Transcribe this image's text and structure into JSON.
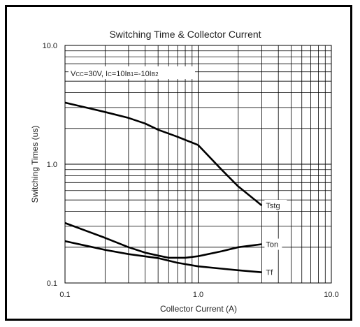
{
  "chart_data": {
    "type": "line",
    "title": "Switching Time & Collector Current",
    "xlabel": "Collector Current (A)",
    "ylabel": "Switching Times (us)",
    "xscale": "log",
    "yscale": "log",
    "xlim": [
      0.1,
      10.0
    ],
    "ylim": [
      0.1,
      10.0
    ],
    "grid": true,
    "xticks": [
      "0.1",
      "1.0",
      "10.0"
    ],
    "yticks": [
      "0.1",
      "1.0",
      "10.0"
    ],
    "condition": {
      "p1": "V",
      "p1_sub": "CC",
      "p2": "=30V, I",
      "p2_sub": "C",
      "p3": "=10I",
      "p3_sub": "B1",
      "p4": "=-10I",
      "p4_sub": "B2"
    },
    "series": [
      {
        "name": "Tstg",
        "x": [
          0.1,
          0.2,
          0.3,
          0.4,
          0.5,
          0.7,
          1.0,
          1.5,
          2.0,
          3.0
        ],
        "y": [
          3.3,
          2.75,
          2.45,
          2.2,
          1.95,
          1.7,
          1.45,
          0.9,
          0.65,
          0.45
        ]
      },
      {
        "name": "Ton",
        "x": [
          0.1,
          0.2,
          0.3,
          0.4,
          0.5,
          0.6,
          0.8,
          1.0,
          1.5,
          2.0,
          3.0
        ],
        "y": [
          0.32,
          0.24,
          0.2,
          0.18,
          0.17,
          0.163,
          0.163,
          0.168,
          0.185,
          0.2,
          0.212
        ]
      },
      {
        "name": "Tf",
        "x": [
          0.1,
          0.2,
          0.3,
          0.5,
          0.7,
          1.0,
          1.5,
          2.0,
          3.0
        ],
        "y": [
          0.225,
          0.19,
          0.175,
          0.162,
          0.148,
          0.138,
          0.132,
          0.128,
          0.123
        ]
      }
    ]
  }
}
